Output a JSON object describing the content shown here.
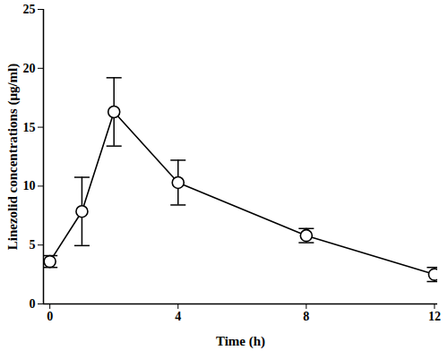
{
  "chart_data": {
    "type": "line",
    "xlabel": "Time (h)",
    "ylabel": "Linezolid concentrations (μg/ml)",
    "x": [
      0,
      1,
      2,
      4,
      8,
      12
    ],
    "series": [
      {
        "color": "#000000",
        "marker": "open circle",
        "line_style": "solid",
        "values": [
          3.6,
          7.85,
          16.3,
          10.3,
          5.8,
          2.5
        ],
        "errors": [
          0.5,
          2.9,
          2.9,
          1.9,
          0.6,
          0.6
        ]
      }
    ],
    "xlim": [
      -0.2,
      12.1
    ],
    "xticks": [
      0,
      4,
      8,
      12
    ],
    "ylim": [
      0,
      25
    ],
    "yticks": [
      0,
      5,
      10,
      15,
      20,
      25
    ],
    "grid": false
  }
}
